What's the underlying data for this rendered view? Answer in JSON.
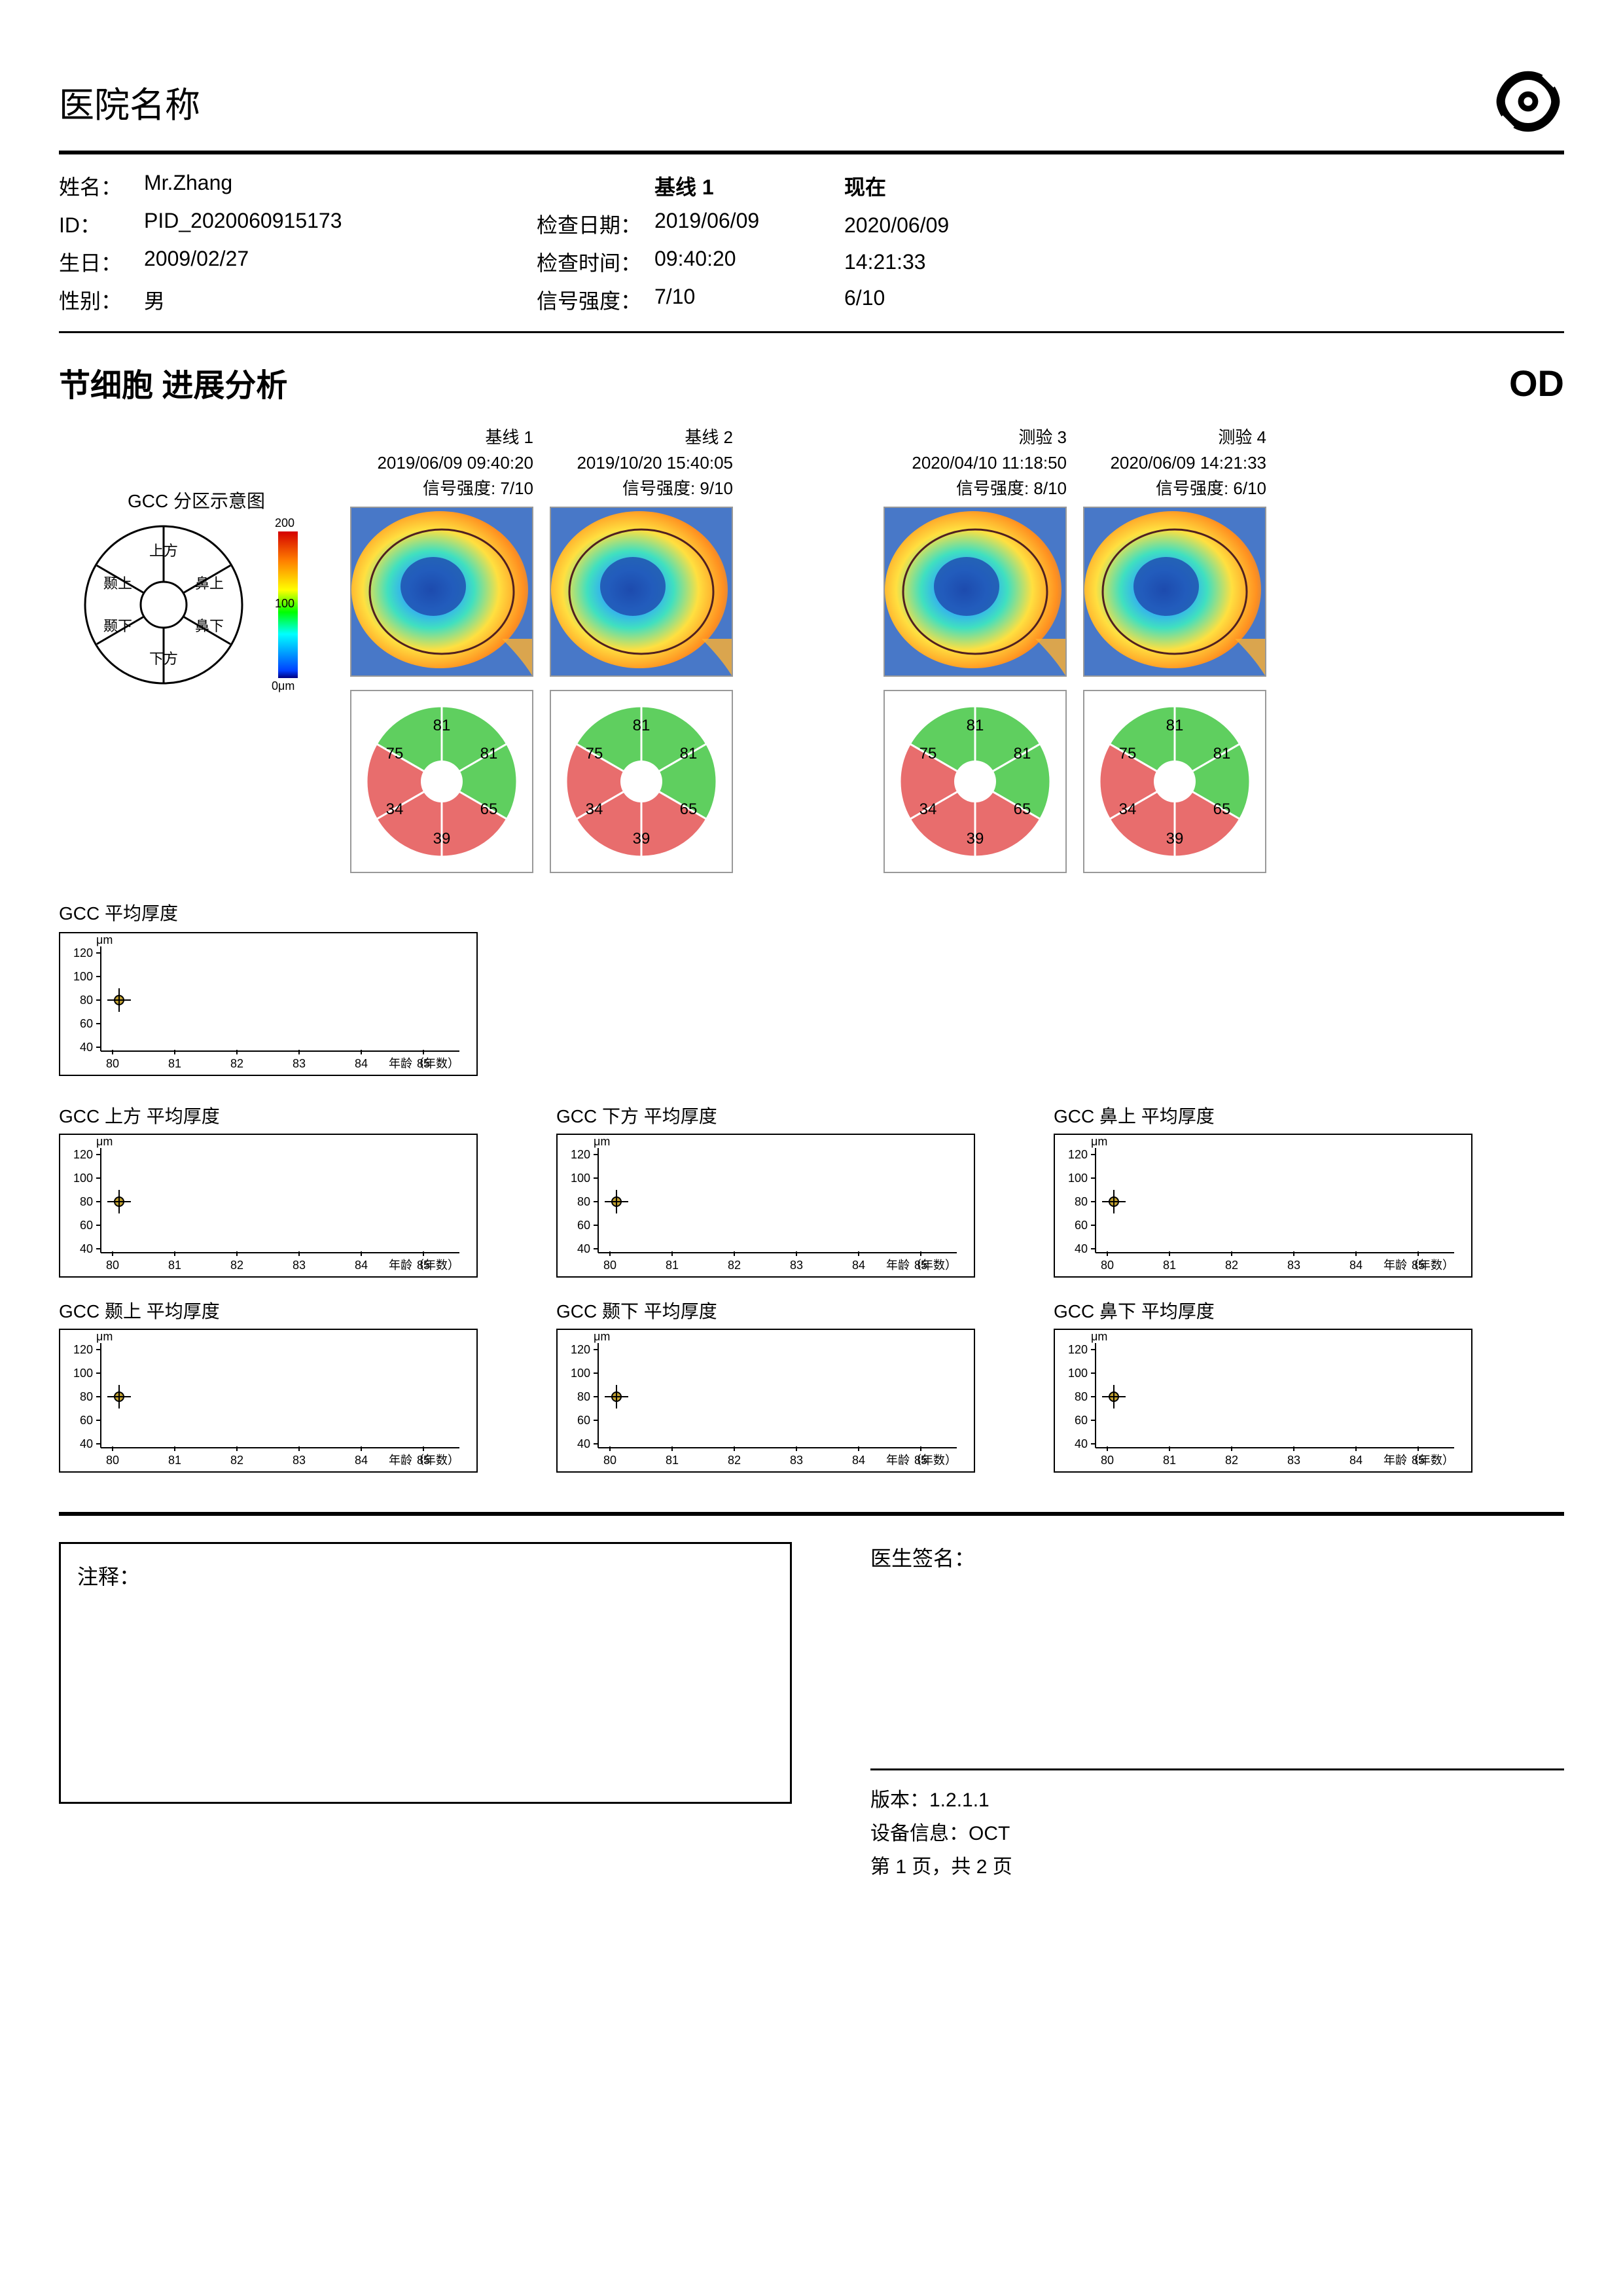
{
  "header": {
    "hospital_name": "医院名称"
  },
  "patient": {
    "name_label": "姓名：",
    "name": "Mr.Zhang",
    "id_label": "ID：",
    "id": "PID_2020060915173",
    "birth_label": "生日：",
    "birth": "2009/02/27",
    "gender_label": "性别：",
    "gender": "男",
    "baseline_header": "基线 1",
    "now_header": "现在",
    "exam_date_label": "检查日期：",
    "exam_date_base": "2019/06/09",
    "exam_date_now": "2020/06/09",
    "exam_time_label": "检查时间：",
    "exam_time_base": "09:40:20",
    "exam_time_now": "14:21:33",
    "signal_label": "信号强度：",
    "signal_base": "7/10",
    "signal_now": "6/10"
  },
  "analysis": {
    "title": "节细胞 进展分析",
    "eye": "OD"
  },
  "legend": {
    "title": "GCC 分区示意图",
    "sectors": {
      "top": "上方",
      "bottom": "下方",
      "nasal_top": "鼻上",
      "nasal_bot": "鼻下",
      "temp_top": "颞上",
      "temp_bot": "颞下"
    },
    "scale": {
      "max": "200",
      "mid": "100",
      "min": "0μm",
      "unit": "μm"
    }
  },
  "scans": [
    {
      "title": "基线 1",
      "datetime": "2019/06/09 09:40:20",
      "signal": "信号强度: 7/10"
    },
    {
      "title": "基线 2",
      "datetime": "2019/10/20 15:40:05",
      "signal": "信号强度: 9/10"
    },
    {
      "title": "测验 3",
      "datetime": "2020/04/10 11:18:50",
      "signal": "信号强度: 8/10"
    },
    {
      "title": "测验 4",
      "datetime": "2020/06/09 14:21:33",
      "signal": "信号强度: 6/10"
    }
  ],
  "pie_values": {
    "top": "81",
    "nasal_top": "81",
    "temp_top": "75",
    "temp_bot": "34",
    "bottom": "39",
    "nasal_bot": "65",
    "colors": {
      "green": "#5fcf5f",
      "red": "#e86d6d"
    }
  },
  "trends": {
    "main_title": "GCC 平均厚度",
    "y_label": "μm",
    "y_ticks": [
      "120",
      "100",
      "80",
      "60",
      "40"
    ],
    "x_ticks": [
      "80",
      "81",
      "82",
      "83",
      "84",
      "85"
    ],
    "x_axis_label": "年龄（年数）",
    "charts": [
      {
        "title": "GCC 上方 平均厚度"
      },
      {
        "title": "GCC 下方 平均厚度"
      },
      {
        "title": "GCC 鼻上 平均厚度"
      },
      {
        "title": "GCC 颞上 平均厚度"
      },
      {
        "title": "GCC 颞下 平均厚度"
      },
      {
        "title": "GCC 鼻下 平均厚度"
      }
    ]
  },
  "footer": {
    "note_label": "注释：",
    "sig_label": "医生签名：",
    "version_label": "版本：",
    "version": "1.2.1.1",
    "device_label": "设备信息：",
    "device": "OCT",
    "page_label": "第 1 页，共 2 页"
  }
}
